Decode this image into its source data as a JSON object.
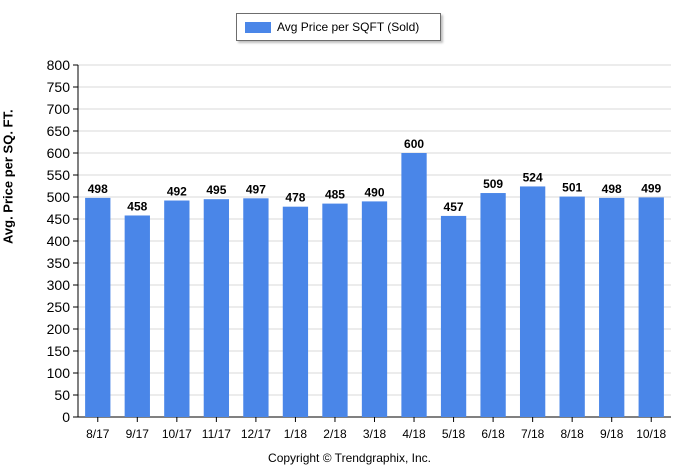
{
  "chart_data": {
    "type": "bar",
    "categories": [
      "8/17",
      "9/17",
      "10/17",
      "11/17",
      "12/17",
      "1/18",
      "2/18",
      "3/18",
      "4/18",
      "5/18",
      "6/18",
      "7/18",
      "8/18",
      "9/18",
      "10/18"
    ],
    "series": [
      {
        "name": "Avg Price per SQFT (Sold)",
        "values": [
          498,
          458,
          492,
          495,
          497,
          478,
          485,
          490,
          600,
          457,
          509,
          524,
          501,
          498,
          499
        ]
      }
    ],
    "ylabel": "Avg. Price per SQ. FT.",
    "xlabel": "",
    "ylim": [
      0,
      800
    ],
    "yticks": [
      0,
      50,
      100,
      150,
      200,
      250,
      300,
      350,
      400,
      450,
      500,
      550,
      600,
      650,
      700,
      750,
      800
    ],
    "grid": true,
    "legend_position": "top-center",
    "bar_color": "#4a86e8"
  },
  "footer": {
    "copyright": "Copyright © Trendgraphix, Inc."
  }
}
